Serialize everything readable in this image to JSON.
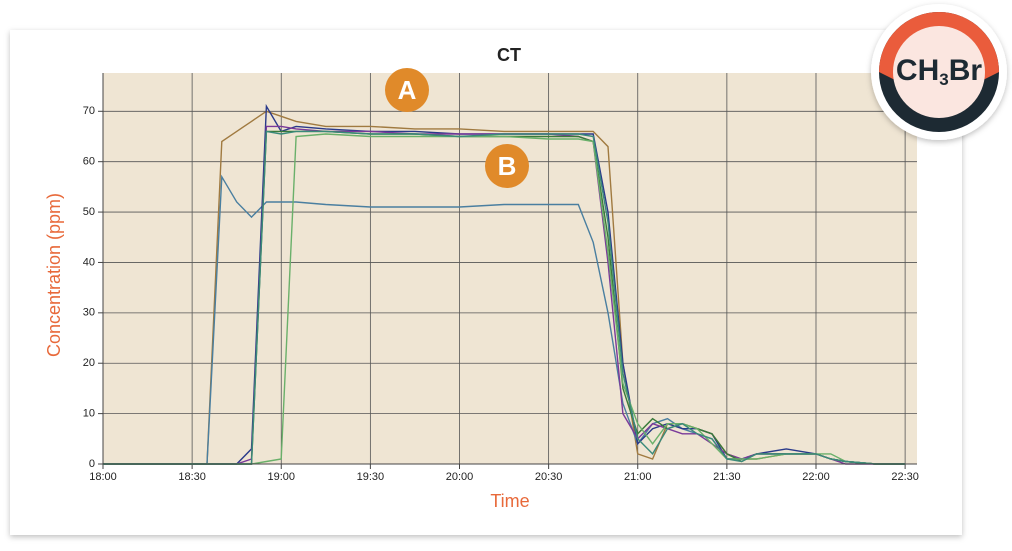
{
  "chart_data": {
    "type": "line",
    "title": "CT",
    "ylabel": "Concentration (ppm)",
    "xlabel": "Time",
    "annotations": [
      "A",
      "B"
    ],
    "badge": {
      "text": "CH",
      "subscript": "3",
      "suffix": "Br"
    },
    "x": [
      "18:00",
      "18:30",
      "18:35",
      "18:40",
      "18:45",
      "18:50",
      "18:55",
      "19:00",
      "19:05",
      "19:15",
      "19:30",
      "19:45",
      "20:00",
      "20:15",
      "20:30",
      "20:40",
      "20:45",
      "20:50",
      "20:55",
      "21:00",
      "21:05",
      "21:10",
      "21:15",
      "21:20",
      "21:25",
      "21:30",
      "21:35",
      "21:40",
      "21:50",
      "22:00",
      "22:05",
      "22:10",
      "22:20",
      "22:30"
    ],
    "xlim": [
      "18:00",
      "22:34"
    ],
    "xticks": [
      "18:00",
      "18:30",
      "19:00",
      "19:30",
      "20:00",
      "20:30",
      "21:00",
      "21:30",
      "22:00",
      "22:30"
    ],
    "ylim": [
      0,
      77.6
    ],
    "yticks": [
      0,
      10,
      20,
      30,
      40,
      50,
      60,
      70
    ],
    "grid": true,
    "series": [
      {
        "color": "#a07a40",
        "values": [
          0,
          0,
          0,
          64,
          66,
          68,
          70,
          69,
          68,
          67,
          67,
          66.5,
          66.5,
          66,
          66,
          66,
          66,
          63,
          20,
          2,
          1,
          8,
          8,
          7,
          6,
          2,
          1,
          1,
          2,
          2,
          1,
          0.5,
          0,
          0
        ]
      },
      {
        "color": "#4a7fa0",
        "values": [
          0,
          0,
          0,
          57,
          52,
          49,
          52,
          52,
          52,
          51.5,
          51,
          51,
          51,
          51.5,
          51.5,
          51.5,
          44,
          30,
          12,
          4,
          8,
          9,
          7,
          6,
          5,
          1,
          1,
          2,
          2,
          2,
          1,
          0.5,
          0,
          0
        ]
      },
      {
        "color": "#2a3a8a",
        "values": [
          0,
          0,
          0,
          0,
          0,
          3,
          71,
          66,
          67,
          66.5,
          66,
          66,
          65.5,
          65.5,
          65.5,
          65.5,
          65.5,
          50,
          20,
          4,
          7,
          8,
          7,
          7,
          6,
          1,
          1,
          2,
          3,
          2,
          1,
          0.5,
          0,
          0
        ]
      },
      {
        "color": "#7a3a9a",
        "values": [
          0,
          0,
          0,
          0,
          0,
          1,
          67,
          67,
          66.5,
          66,
          66,
          65.5,
          65.5,
          65.5,
          65.5,
          65,
          64,
          40,
          10,
          5,
          8,
          7,
          6,
          6,
          4,
          2,
          1,
          2,
          2,
          2,
          1,
          0,
          0,
          0
        ]
      },
      {
        "color": "#3a7a3a",
        "values": [
          0,
          0,
          0,
          0,
          0,
          0,
          66,
          66,
          66,
          66,
          65.5,
          65.5,
          65,
          65,
          65,
          65,
          64,
          45,
          15,
          6,
          9,
          7,
          8,
          7,
          6,
          2,
          0.5,
          2,
          2,
          2,
          1,
          0.5,
          0,
          0
        ]
      },
      {
        "color": "#6ab06a",
        "values": [
          0,
          0,
          0,
          0,
          0,
          0,
          0.5,
          1,
          65,
          65.5,
          65,
          65,
          65,
          65,
          64.5,
          64.5,
          64,
          42,
          16,
          8,
          4,
          8,
          8,
          7,
          4,
          1,
          1,
          1,
          2,
          2,
          2,
          0.5,
          0,
          0
        ]
      },
      {
        "color": "#3a8a7a",
        "values": [
          0,
          0,
          0,
          0,
          0,
          0,
          66,
          65.5,
          66,
          66,
          65.5,
          65.5,
          65,
          65.5,
          65.5,
          65.5,
          65,
          48,
          18,
          5,
          2,
          7,
          8,
          6,
          5,
          1,
          0.5,
          2,
          2,
          2,
          1,
          0.5,
          0,
          0
        ]
      }
    ]
  }
}
